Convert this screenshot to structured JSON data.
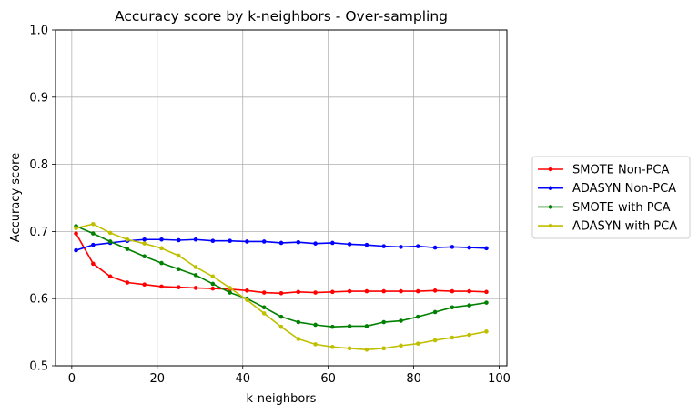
{
  "chart_data": {
    "type": "line",
    "title": "Accuracy score by k-neighbors - Over-sampling",
    "xlabel": "k-neighbors",
    "ylabel": "Accuracy score",
    "xlim": [
      -3.8,
      101.8
    ],
    "ylim": [
      0.5,
      1.0
    ],
    "xticks": [
      0,
      20,
      40,
      60,
      80,
      100
    ],
    "yticks": [
      0.5,
      0.6,
      0.7,
      0.8,
      0.9,
      1.0
    ],
    "grid": true,
    "legend_position": "outside-right",
    "x": [
      1,
      5,
      9,
      13,
      17,
      21,
      25,
      29,
      33,
      37,
      41,
      45,
      49,
      53,
      57,
      61,
      65,
      69,
      73,
      77,
      81,
      85,
      89,
      93,
      97
    ],
    "series": [
      {
        "name": "SMOTE Non-PCA",
        "color": "#ff0000",
        "values": [
          0.697,
          0.652,
          0.633,
          0.624,
          0.621,
          0.618,
          0.617,
          0.616,
          0.615,
          0.614,
          0.612,
          0.609,
          0.608,
          0.61,
          0.609,
          0.61,
          0.611,
          0.611,
          0.611,
          0.611,
          0.611,
          0.612,
          0.611,
          0.611,
          0.61
        ]
      },
      {
        "name": "ADASYN Non-PCA",
        "color": "#0000ff",
        "values": [
          0.672,
          0.68,
          0.683,
          0.686,
          0.688,
          0.688,
          0.687,
          0.688,
          0.686,
          0.686,
          0.685,
          0.685,
          0.683,
          0.684,
          0.682,
          0.683,
          0.681,
          0.68,
          0.678,
          0.677,
          0.678,
          0.676,
          0.677,
          0.676,
          0.675
        ]
      },
      {
        "name": "SMOTE with PCA",
        "color": "#008000",
        "values": [
          0.708,
          0.697,
          0.685,
          0.674,
          0.663,
          0.653,
          0.644,
          0.635,
          0.622,
          0.609,
          0.6,
          0.587,
          0.573,
          0.565,
          0.561,
          0.558,
          0.559,
          0.559,
          0.565,
          0.567,
          0.573,
          0.58,
          0.587,
          0.59,
          0.594
        ]
      },
      {
        "name": "ADASYN with PCA",
        "color": "#bfbf00",
        "values": [
          0.705,
          0.711,
          0.698,
          0.688,
          0.682,
          0.675,
          0.664,
          0.647,
          0.633,
          0.616,
          0.598,
          0.578,
          0.558,
          0.54,
          0.532,
          0.528,
          0.526,
          0.524,
          0.526,
          0.53,
          0.533,
          0.538,
          0.542,
          0.546,
          0.551
        ]
      }
    ]
  }
}
